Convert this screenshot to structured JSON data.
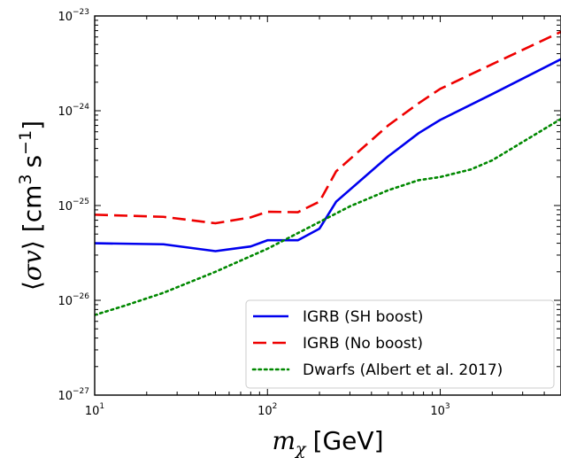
{
  "chart_data": {
    "type": "line",
    "xscale": "log",
    "yscale": "log",
    "xlim": [
      10,
      5000
    ],
    "ylim": [
      1e-27,
      1e-23
    ],
    "grid": false,
    "legend_position": "lower-right",
    "xlabel": {
      "symbol": "m",
      "subscript": "χ",
      "unit": "[GeV]"
    },
    "ylabel": {
      "open": "⟨",
      "symbol": "σv",
      "close": "⟩",
      "unit_prefix": "[cm",
      "unit_exp": "3",
      "unit_mid": "s",
      "unit_exp2": "−1",
      "unit_close": "]"
    },
    "x_ticks": [
      {
        "base": "10",
        "exp": "1"
      },
      {
        "base": "10",
        "exp": "2"
      },
      {
        "base": "10",
        "exp": "3"
      }
    ],
    "y_ticks": [
      {
        "base": "10",
        "exp": "−27"
      },
      {
        "base": "10",
        "exp": "−26"
      },
      {
        "base": "10",
        "exp": "−25"
      },
      {
        "base": "10",
        "exp": "−24"
      },
      {
        "base": "10",
        "exp": "−23"
      }
    ],
    "series": [
      {
        "name": "IGRB (SH boost)",
        "color": "#0000ee",
        "style": "solid",
        "x": [
          10,
          25,
          50,
          80,
          100,
          150,
          200,
          250,
          500,
          750,
          1000,
          2000,
          5000
        ],
        "y": [
          4e-26,
          3.9e-26,
          3.3e-26,
          3.7e-26,
          4.3e-26,
          4.3e-26,
          5.7e-26,
          1.1e-25,
          3.3e-25,
          5.8e-25,
          8e-25,
          1.5e-24,
          3.5e-24
        ]
      },
      {
        "name": "IGRB (No boost)",
        "color": "#ee0000",
        "style": "dashed",
        "x": [
          10,
          25,
          50,
          80,
          100,
          150,
          200,
          250,
          500,
          750,
          1000,
          2000,
          5000
        ],
        "y": [
          8e-26,
          7.6e-26,
          6.5e-26,
          7.5e-26,
          8.6e-26,
          8.5e-26,
          1.1e-25,
          2.3e-25,
          7e-25,
          1.2e-24,
          1.7e-24,
          3.1e-24,
          6.8e-24
        ]
      },
      {
        "name": "Dwarfs (Albert et al. 2017)",
        "color": "#008800",
        "style": "dotted",
        "x": [
          10,
          15,
          25,
          50,
          100,
          200,
          300,
          500,
          750,
          1000,
          1500,
          2000,
          5000
        ],
        "y": [
          7e-27,
          8.8e-27,
          1.2e-26,
          2e-26,
          3.5e-26,
          6.7e-26,
          9.8e-26,
          1.45e-25,
          1.85e-25,
          2e-25,
          2.4e-25,
          3e-25,
          8.2e-25
        ]
      }
    ]
  }
}
